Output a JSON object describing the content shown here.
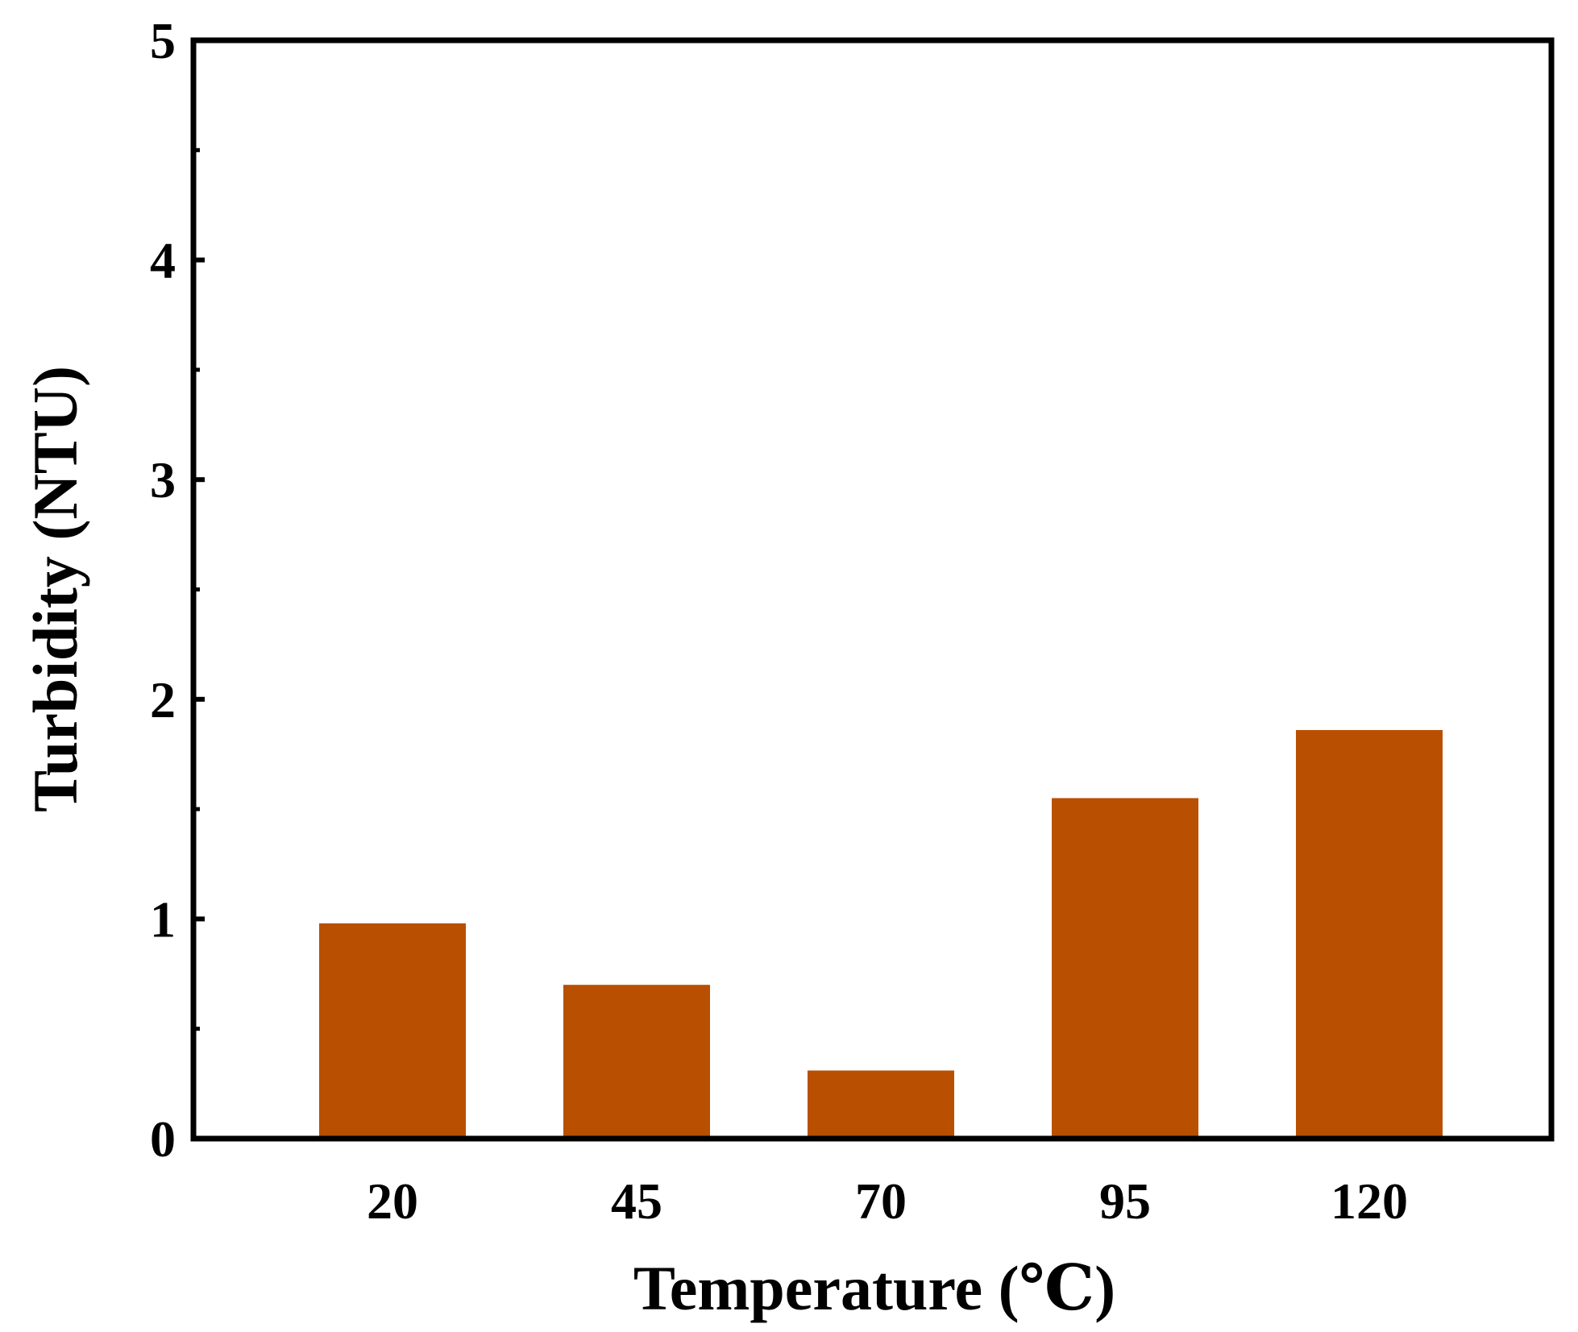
{
  "chart_data": {
    "type": "bar",
    "categories": [
      "20",
      "45",
      "70",
      "95",
      "120"
    ],
    "values": [
      0.98,
      0.7,
      0.31,
      1.55,
      1.86
    ],
    "xlabel": "Temperature (℃)",
    "ylabel": "Turbidity (NTU)",
    "ylim": [
      0,
      5
    ],
    "yticks": [
      "0",
      "1",
      "2",
      "3",
      "4",
      "5"
    ],
    "minor_ticks": [
      0.5,
      1.5,
      2.5,
      3.5,
      4.5
    ],
    "grid": false,
    "legend": "none",
    "bar_color": "#b94f00",
    "axis_color": "#000000"
  }
}
